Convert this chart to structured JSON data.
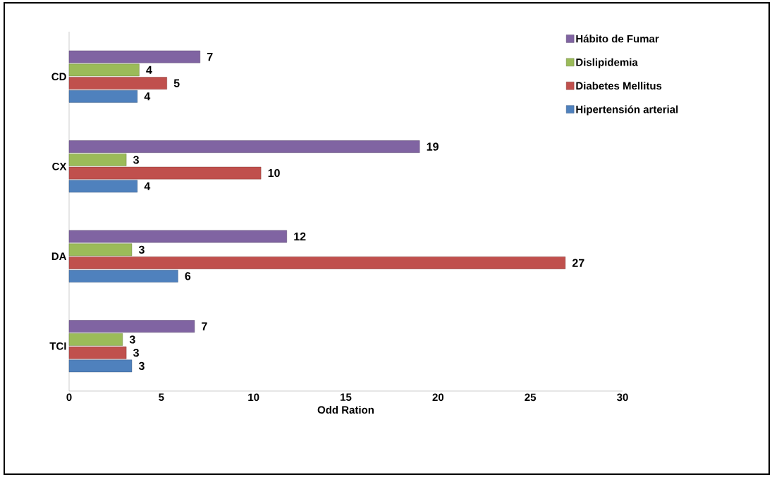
{
  "chart_data": {
    "type": "bar",
    "orientation": "horizontal",
    "xlabel": "Odd Ration",
    "categories": [
      "CD",
      "CX",
      "DA",
      "TCI"
    ],
    "series": [
      {
        "name": "Hipertensión arterial",
        "color": "#4f81bd",
        "values": [
          3.7,
          3.7,
          5.9,
          3.4
        ],
        "value_labels": [
          "4",
          "4",
          "6",
          "3"
        ]
      },
      {
        "name": "Diabetes Mellitus",
        "color": "#c0504d",
        "values": [
          5.3,
          10.4,
          26.9,
          3.1
        ],
        "value_labels": [
          "5",
          "10",
          "27",
          "3"
        ]
      },
      {
        "name": "Dislipidemia",
        "color": "#9bbb59",
        "values": [
          3.8,
          3.1,
          3.4,
          2.9
        ],
        "value_labels": [
          "4",
          "3",
          "3",
          "3"
        ]
      },
      {
        "name": "Hábito de Fumar",
        "color": "#8064a2",
        "values": [
          7.1,
          19.0,
          11.8,
          6.8
        ],
        "value_labels": [
          "7",
          "19",
          "12",
          "7"
        ]
      }
    ],
    "xlim": [
      0,
      30
    ],
    "xticks": [
      0,
      5,
      10,
      15,
      20,
      25,
      30
    ],
    "grid": false,
    "legend": "top right"
  }
}
